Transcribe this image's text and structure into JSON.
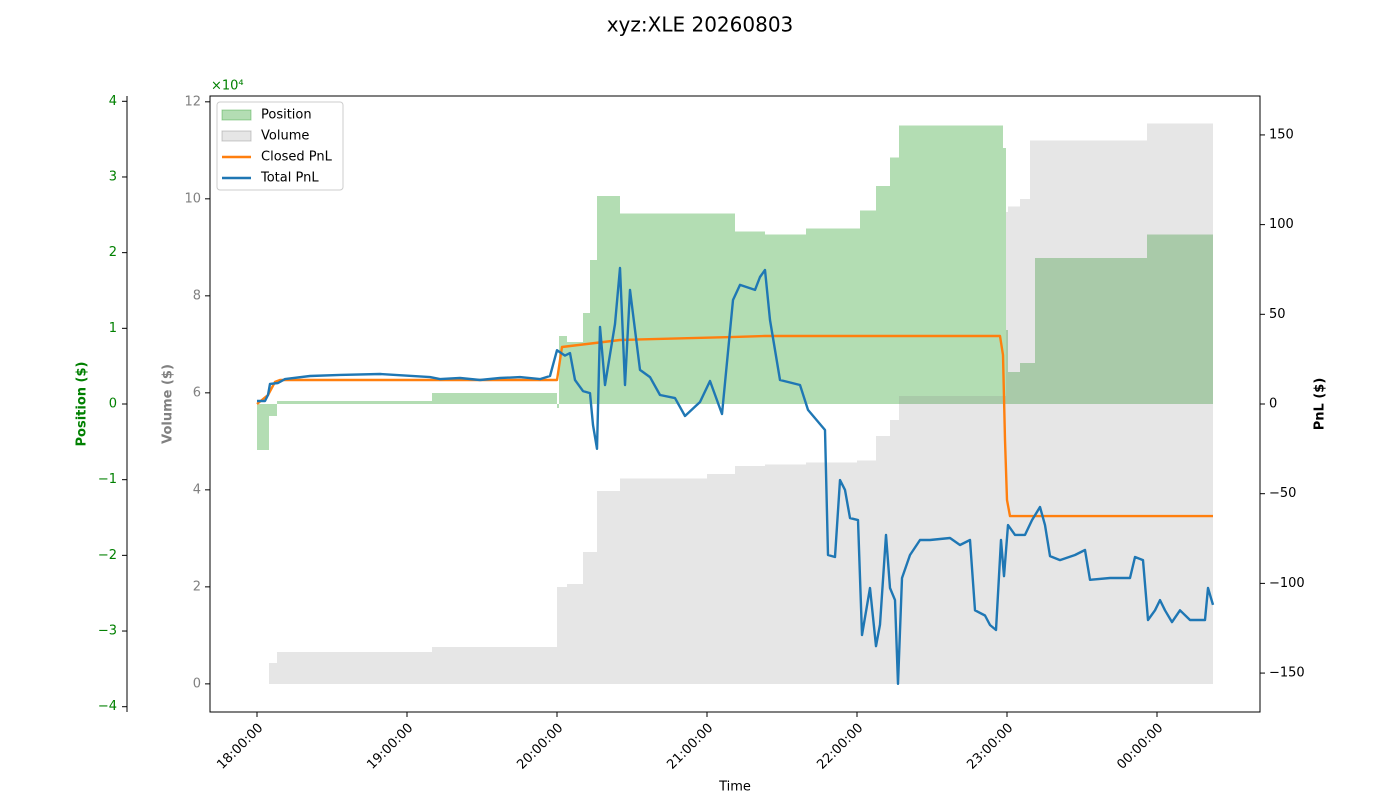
{
  "chart_data": {
    "type": "line",
    "title": "xyz:XLE 20260803",
    "x_label": "Time",
    "y_label": "Position ($)",
    "y2_label": "PnL ($)",
    "y3_label": "Volume ($)",
    "offset_label": "×10⁴",
    "xlim": [
      "17:41:12",
      "00:41:12"
    ],
    "xticks": [
      "18:00:00",
      "19:00:00",
      "20:00:00",
      "21:00:00",
      "22:00:00",
      "23:00:00",
      "00:00:00"
    ],
    "ylim": [
      -4.07,
      4.07
    ],
    "yticks": [
      {
        "value": -4,
        "label": "−4"
      },
      {
        "value": -3,
        "label": "−3"
      },
      {
        "value": -2,
        "label": "−2"
      },
      {
        "value": -1,
        "label": "−1"
      },
      0,
      1,
      2,
      3,
      4
    ],
    "y2lim": [
      -171.7,
      171.7
    ],
    "y2ticks": [
      {
        "value": -150,
        "label": "−150"
      },
      {
        "value": -100,
        "label": "−100"
      },
      {
        "value": -50,
        "label": "−50"
      },
      0,
      50,
      100,
      150
    ],
    "y3lim": [
      -0.58,
      12.12
    ],
    "y3ticks": [
      0,
      2,
      4,
      6,
      8,
      10,
      12
    ],
    "legend": "upper left",
    "series": [
      {
        "name": "Position",
        "kind": "area",
        "axis": "y",
        "color": "#2ca02c",
        "x": [
          "18:00:00",
          "18:04:48",
          "18:08:00",
          "19:10:00",
          "20:00:00",
          "20:00:48",
          "20:04:00",
          "20:10:24",
          "20:13:12",
          "20:16:00",
          "20:25:12",
          "21:11:12",
          "21:23:12",
          "21:39:36",
          "22:01:12",
          "22:07:36",
          "22:13:12",
          "22:16:48",
          "22:58:24",
          "22:59:36",
          "23:00:24",
          "23:05:12",
          "23:11:12",
          "23:56:00",
          "00:22:24"
        ],
        "values": [
          -0.61,
          -0.16,
          0.04,
          0.145,
          -0.05,
          0.9,
          0.82,
          1.2,
          1.9,
          2.75,
          2.52,
          2.28,
          2.24,
          2.32,
          2.56,
          2.88,
          3.26,
          3.68,
          3.38,
          0.98,
          0.42,
          0.54,
          1.93,
          2.24,
          2.24
        ]
      },
      {
        "name": "Volume",
        "kind": "area",
        "axis": "y3",
        "color": "#808080",
        "x": [
          "18:00:00",
          "18:04:48",
          "18:08:00",
          "19:10:00",
          "20:00:00",
          "20:04:00",
          "20:10:24",
          "20:16:00",
          "20:25:12",
          "21:00:00",
          "21:11:12",
          "21:23:12",
          "21:39:36",
          "22:00:00",
          "22:07:36",
          "22:13:12",
          "22:16:48",
          "22:59:36",
          "23:00:24",
          "23:05:12",
          "23:09:12",
          "23:56:00",
          "00:22:24"
        ],
        "values": [
          0,
          0.43,
          0.66,
          0.76,
          2.0,
          2.06,
          2.72,
          3.98,
          4.23,
          4.33,
          4.49,
          4.52,
          4.56,
          4.6,
          5.11,
          5.44,
          5.94,
          9.73,
          9.84,
          10.0,
          11.2,
          11.55,
          11.55
        ]
      },
      {
        "name": "Closed PnL",
        "kind": "line",
        "axis": "y2",
        "color": "#ff7f0e",
        "x": [
          "18:00:00",
          "18:04:24",
          "18:07:12",
          "18:09:12",
          "20:00:00",
          "20:02:00",
          "20:25:12",
          "21:11:12",
          "21:23:12",
          "22:57:12",
          "22:58:24",
          "22:59:12",
          "23:00:00",
          "23:01:12",
          "00:22:24"
        ],
        "values": [
          0,
          5,
          12.3,
          13.4,
          13.4,
          31.8,
          35.7,
          37.4,
          37.9,
          37.9,
          27.3,
          -20,
          -53.5,
          -62.5,
          -62.5
        ]
      },
      {
        "name": "Total PnL",
        "kind": "line",
        "axis": "y2",
        "color": "#1f77b4",
        "x": [
          "18:00:00",
          "18:03:12",
          "18:04:24",
          "18:05:12",
          "18:08:24",
          "18:11:12",
          "18:21:12",
          "18:33:12",
          "18:49:12",
          "19:09:12",
          "19:13:12",
          "19:21:12",
          "19:29:12",
          "19:37:12",
          "19:45:12",
          "19:53:12",
          "19:57:12",
          "20:00:00",
          "20:03:12",
          "20:05:12",
          "20:07:12",
          "20:10:24",
          "20:13:12",
          "20:14:24",
          "20:16:00",
          "20:17:12",
          "20:19:12",
          "20:23:12",
          "20:25:12",
          "20:27:12",
          "20:29:12",
          "20:33:12",
          "20:37:12",
          "20:41:12",
          "20:47:12",
          "20:51:12",
          "20:57:12",
          "21:01:12",
          "21:06:00",
          "21:10:24",
          "21:13:12",
          "21:19:12",
          "21:21:12",
          "21:23:12",
          "21:25:12",
          "21:29:12",
          "21:37:12",
          "21:40:24",
          "21:47:12",
          "21:48:24",
          "21:51:12",
          "21:53:12",
          "21:55:12",
          "21:57:12",
          "22:00:24",
          "22:02:00",
          "22:05:12",
          "22:07:36",
          "22:09:12",
          "22:11:36",
          "22:13:12",
          "22:15:12",
          "22:16:24",
          "22:18:00",
          "22:21:12",
          "22:25:12",
          "22:29:12",
          "22:37:12",
          "22:41:12",
          "22:45:12",
          "22:47:12",
          "22:51:12",
          "22:53:12",
          "22:55:36",
          "22:57:36",
          "22:58:48",
          "23:00:24",
          "23:03:12",
          "23:07:12",
          "23:10:00",
          "23:13:12",
          "23:15:12",
          "23:17:12",
          "23:21:12",
          "23:27:12",
          "23:31:12",
          "23:33:12",
          "23:41:12",
          "23:49:12",
          "23:51:12",
          "23:54:24",
          "23:56:24",
          "23:59:12",
          "00:01:12",
          "00:03:12",
          "00:06:00",
          "00:09:12",
          "00:13:12",
          "00:19:12",
          "00:20:24",
          "00:22:24"
        ],
        "values": [
          1.7,
          1.7,
          5,
          11.2,
          11.7,
          13.9,
          15.6,
          16.2,
          16.7,
          15,
          13.9,
          14.5,
          13.4,
          14.5,
          15,
          13.9,
          15.6,
          30,
          27,
          28.4,
          13.4,
          7.2,
          6.1,
          -11.7,
          -25,
          43,
          10.6,
          44.6,
          75.8,
          10.6,
          63.6,
          19,
          15,
          5,
          3.3,
          -6.7,
          1.1,
          12.8,
          -5.6,
          58,
          66.4,
          63.6,
          70.8,
          74.7,
          46.8,
          13.4,
          10.6,
          -3.3,
          -14.5,
          -84.2,
          -85.3,
          -42.4,
          -47.9,
          -63.6,
          -64.7,
          -128.8,
          -102.6,
          -135,
          -123,
          -73,
          -102.6,
          -109.3,
          -156,
          -97,
          -84.2,
          -75.8,
          -75.8,
          -74.7,
          -78.6,
          -75.8,
          -115,
          -117.9,
          -123.2,
          -126,
          -75.8,
          -96,
          -67.5,
          -73,
          -73,
          -64.7,
          -57.4,
          -67.5,
          -84.8,
          -87,
          -84.2,
          -81.4,
          -98,
          -97,
          -97,
          -85.3,
          -87,
          -120.4,
          -115,
          -109.3,
          -115,
          -121.6,
          -115,
          -120.4,
          -120.4,
          -102.6,
          -112
        ]
      }
    ]
  }
}
